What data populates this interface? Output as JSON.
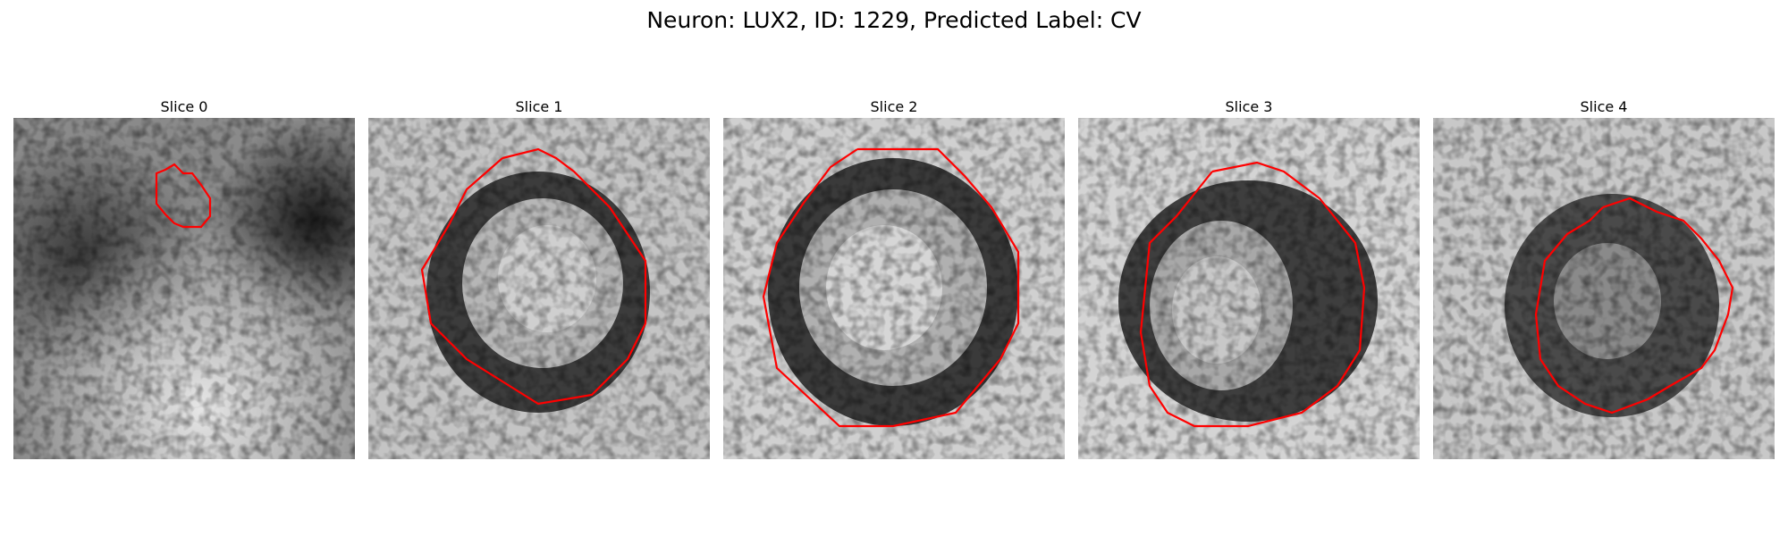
{
  "figure": {
    "suptitle": "Neuron: LUX2, ID: 1229, Predicted Label: CV"
  },
  "colors": {
    "contour": "#ff0000",
    "background": "#ffffff"
  },
  "panels": [
    {
      "title": "Slice 0"
    },
    {
      "title": "Slice 1"
    },
    {
      "title": "Slice 2"
    },
    {
      "title": "Slice 3"
    },
    {
      "title": "Slice 4"
    }
  ]
}
